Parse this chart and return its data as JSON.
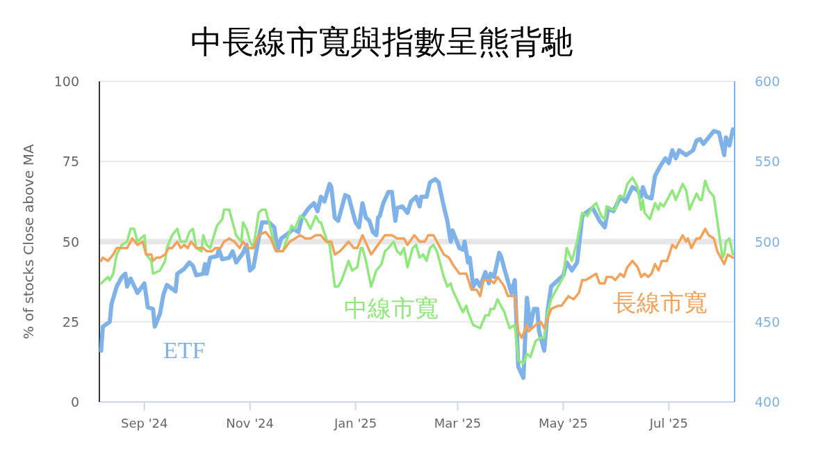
{
  "chart_data": {
    "type": "line",
    "title": "中長線市寬與指數呈熊背馳",
    "ylabel": "% of stocks Close above MA",
    "xlim": [
      "2024-08-06",
      "2025-08-08"
    ],
    "xticks": [
      {
        "value": "2024-09-01",
        "label": "Sep '24"
      },
      {
        "value": "2024-11-01",
        "label": "Nov '24"
      },
      {
        "value": "2025-01-01",
        "label": "Jan '25"
      },
      {
        "value": "2025-03-01",
        "label": "Mar '25"
      },
      {
        "value": "2025-05-01",
        "label": "May '25"
      },
      {
        "value": "2025-07-01",
        "label": "Jul '25"
      }
    ],
    "ylim": [
      0,
      100
    ],
    "yticks": [
      0,
      25,
      50,
      75,
      100
    ],
    "y2lim": [
      400,
      600
    ],
    "y2ticks": [
      400,
      450,
      500,
      550,
      600
    ],
    "grid": "y",
    "ref_lines": [
      {
        "axis": "y",
        "value": 50,
        "color": "#e6e6e6"
      }
    ],
    "series": [
      {
        "name": "ETF",
        "color": "#7fb2e8",
        "axis": "y2",
        "x": [
          "2024-08-07",
          "2024-08-08",
          "2024-08-12",
          "2024-08-13",
          "2024-08-16",
          "2024-08-19",
          "2024-08-21",
          "2024-08-22",
          "2024-08-24",
          "2024-08-28",
          "2024-09-01",
          "2024-09-03",
          "2024-09-06",
          "2024-09-07",
          "2024-09-10",
          "2024-09-12",
          "2024-09-14",
          "2024-09-19",
          "2024-09-20",
          "2024-09-24",
          "2024-09-27",
          "2024-09-29",
          "2024-10-01",
          "2024-10-05",
          "2024-10-06",
          "2024-10-07",
          "2024-10-09",
          "2024-10-13",
          "2024-10-14",
          "2024-10-16",
          "2024-10-20",
          "2024-10-22",
          "2024-10-24",
          "2024-10-28",
          "2024-10-30",
          "2024-11-01",
          "2024-11-03",
          "2024-11-06",
          "2024-11-08",
          "2024-11-12",
          "2024-11-15",
          "2024-11-17",
          "2024-11-19",
          "2024-11-23",
          "2024-11-26",
          "2024-11-29",
          "2024-12-01",
          "2024-12-05",
          "2024-12-08",
          "2024-12-10",
          "2024-12-12",
          "2024-12-14",
          "2024-12-17",
          "2024-12-18",
          "2024-12-20",
          "2024-12-22",
          "2024-12-26",
          "2024-12-28",
          "2025-01-01",
          "2025-01-03",
          "2025-01-05",
          "2025-01-07",
          "2025-01-09",
          "2025-01-11",
          "2025-01-13",
          "2025-01-14",
          "2025-01-15",
          "2025-01-17",
          "2025-01-20",
          "2025-01-22",
          "2025-01-24",
          "2025-01-25",
          "2025-01-28",
          "2025-01-31",
          "2025-02-02",
          "2025-02-05",
          "2025-02-07",
          "2025-02-08",
          "2025-02-11",
          "2025-02-13",
          "2025-02-16",
          "2025-02-18",
          "2025-02-21",
          "2025-02-23",
          "2025-02-25",
          "2025-02-26",
          "2025-03-02",
          "2025-03-04",
          "2025-03-05",
          "2025-03-07",
          "2025-03-08",
          "2025-03-10",
          "2025-03-12",
          "2025-03-14",
          "2025-03-17",
          "2025-03-19",
          "2025-03-20",
          "2025-03-22",
          "2025-03-25",
          "2025-03-26",
          "2025-03-28",
          "2025-04-01",
          "2025-04-03",
          "2025-04-05",
          "2025-04-08",
          "2025-04-10",
          "2025-04-12",
          "2025-04-14",
          "2025-04-16",
          "2025-04-17",
          "2025-04-20",
          "2025-04-22",
          "2025-04-24",
          "2025-04-28",
          "2025-05-01",
          "2025-05-03",
          "2025-05-06",
          "2025-05-09",
          "2025-05-12",
          "2025-05-14",
          "2025-05-18",
          "2025-05-22",
          "2025-05-25",
          "2025-05-27",
          "2025-05-30",
          "2025-06-03",
          "2025-06-06",
          "2025-06-10",
          "2025-06-13",
          "2025-06-15",
          "2025-06-16",
          "2025-06-18",
          "2025-06-21",
          "2025-06-23",
          "2025-06-26",
          "2025-06-29",
          "2025-07-01",
          "2025-07-03",
          "2025-07-05",
          "2025-07-07",
          "2025-07-11",
          "2025-07-15",
          "2025-07-17",
          "2025-07-19",
          "2025-07-21",
          "2025-07-24",
          "2025-07-27",
          "2025-07-30",
          "2025-08-02",
          "2025-08-03",
          "2025-08-05",
          "2025-08-07"
        ],
        "values": [
          432,
          447,
          450,
          461,
          472,
          478,
          480,
          472,
          477,
          468,
          474,
          459,
          458,
          447,
          455,
          467,
          473,
          469,
          480,
          483,
          487,
          485,
          479,
          480,
          486,
          480,
          490,
          491,
          495,
          489,
          490,
          494,
          487,
          493,
          498,
          482,
          484,
          502,
          512,
          512,
          509,
          495,
          502,
          505,
          508,
          506,
          515,
          521,
          524,
          519,
          528,
          525,
          536,
          534,
          515,
          513,
          529,
          528,
          512,
          509,
          524,
          515,
          513,
          506,
          504,
          515,
          516,
          524,
          531,
          531,
          513,
          521,
          522,
          518,
          525,
          528,
          522,
          528,
          528,
          537,
          539,
          537,
          522,
          513,
          500,
          507,
          496,
          495,
          500,
          487,
          490,
          472,
          476,
          472,
          481,
          474,
          480,
          478,
          493,
          491,
          483,
          468,
          476,
          422,
          415,
          465,
          447,
          458,
          458,
          444,
          432,
          457,
          472,
          476,
          479,
          487,
          482,
          487,
          516,
          518,
          521,
          513,
          509,
          521,
          519,
          528,
          525,
          534,
          532,
          528,
          534,
          528,
          527,
          541,
          547,
          552,
          549,
          557,
          552,
          557,
          554,
          557,
          563,
          564,
          561,
          565,
          569,
          568,
          554,
          565,
          560,
          570
        ]
      },
      {
        "name": "中線市寬",
        "color": "#8ee87a",
        "x": [
          "2024-08-07",
          "2024-08-11",
          "2024-08-12",
          "2024-08-14",
          "2024-08-16",
          "2024-08-19",
          "2024-08-22",
          "2024-08-24",
          "2024-08-26",
          "2024-08-28",
          "2024-09-01",
          "2024-09-02",
          "2024-09-05",
          "2024-09-06",
          "2024-09-10",
          "2024-09-13",
          "2024-09-14",
          "2024-09-17",
          "2024-09-20",
          "2024-09-22",
          "2024-09-25",
          "2024-09-27",
          "2024-09-29",
          "2024-10-01",
          "2024-10-04",
          "2024-10-05",
          "2024-10-07",
          "2024-10-09",
          "2024-10-13",
          "2024-10-16",
          "2024-10-17",
          "2024-10-20",
          "2024-10-22",
          "2024-10-24",
          "2024-10-27",
          "2024-10-28",
          "2024-10-30",
          "2024-11-01",
          "2024-11-03",
          "2024-11-06",
          "2024-11-08",
          "2024-11-10",
          "2024-11-12",
          "2024-11-16",
          "2024-11-20",
          "2024-11-25",
          "2024-11-27",
          "2024-11-30",
          "2024-12-03",
          "2024-12-06",
          "2024-12-09",
          "2024-12-11",
          "2024-12-12",
          "2024-12-15",
          "2024-12-17",
          "2024-12-20",
          "2024-12-22",
          "2024-12-24",
          "2024-12-28",
          "2024-12-30",
          "2025-01-02",
          "2025-01-04",
          "2025-01-05",
          "2025-01-07",
          "2025-01-10",
          "2025-01-13",
          "2025-01-16",
          "2025-01-18",
          "2025-01-20",
          "2025-01-23",
          "2025-01-25",
          "2025-01-27",
          "2025-01-29",
          "2025-01-31",
          "2025-02-03",
          "2025-02-05",
          "2025-02-07",
          "2025-02-09",
          "2025-02-11",
          "2025-02-13",
          "2025-02-15",
          "2025-02-17",
          "2025-02-21",
          "2025-02-23",
          "2025-02-25",
          "2025-02-26",
          "2025-03-04",
          "2025-03-06",
          "2025-03-07",
          "2025-03-10",
          "2025-03-14",
          "2025-03-17",
          "2025-03-19",
          "2025-03-20",
          "2025-03-22",
          "2025-03-24",
          "2025-03-28",
          "2025-03-31",
          "2025-04-03",
          "2025-04-05",
          "2025-04-08",
          "2025-04-10",
          "2025-04-12",
          "2025-04-15",
          "2025-04-18",
          "2025-04-20",
          "2025-04-22",
          "2025-04-24",
          "2025-04-28",
          "2025-05-01",
          "2025-05-03",
          "2025-05-06",
          "2025-05-09",
          "2025-05-12",
          "2025-05-15",
          "2025-05-18",
          "2025-05-20",
          "2025-05-23",
          "2025-05-25",
          "2025-05-26",
          "2025-05-29",
          "2025-05-31",
          "2025-06-02",
          "2025-06-05",
          "2025-06-07",
          "2025-06-10",
          "2025-06-13",
          "2025-06-15",
          "2025-06-16",
          "2025-06-17",
          "2025-06-20",
          "2025-06-23",
          "2025-06-25",
          "2025-06-26",
          "2025-06-28",
          "2025-07-03",
          "2025-07-05",
          "2025-07-09",
          "2025-07-11",
          "2025-07-13",
          "2025-07-17",
          "2025-07-19",
          "2025-07-20",
          "2025-07-22",
          "2025-07-24",
          "2025-07-27",
          "2025-08-01",
          "2025-08-02",
          "2025-08-03",
          "2025-08-05",
          "2025-08-07"
        ],
        "values": [
          37,
          39,
          38,
          40,
          46,
          49,
          50,
          54,
          54,
          50,
          52,
          46,
          44,
          40,
          41,
          44,
          48,
          52,
          54,
          50,
          50,
          53,
          54,
          48,
          47,
          52,
          49,
          48,
          55,
          57,
          60,
          60,
          56,
          52,
          50,
          56,
          54,
          50,
          48,
          59,
          60,
          60,
          56,
          47,
          47,
          55,
          54,
          58,
          57,
          54,
          58,
          56,
          56,
          51,
          49,
          36,
          36,
          38,
          44,
          41,
          42,
          48,
          48,
          44,
          36,
          41,
          43,
          47,
          48,
          50,
          47,
          46,
          48,
          42,
          48,
          49,
          45,
          46,
          44,
          48,
          49,
          47,
          39,
          36,
          37,
          35,
          28,
          30,
          28,
          24,
          23,
          27,
          27,
          29,
          29,
          32,
          28,
          23,
          24,
          13,
          12,
          15,
          14,
          19,
          20,
          20,
          28,
          32,
          36,
          39,
          48,
          44,
          50,
          59,
          58,
          61,
          62,
          58,
          57,
          61,
          60,
          60,
          64,
          64,
          68,
          70,
          67,
          60,
          63,
          59,
          57,
          62,
          60,
          62,
          61,
          66,
          63,
          68,
          66,
          60,
          65,
          63,
          63,
          69,
          66,
          64,
          45,
          46,
          50,
          51,
          46
        ]
      },
      {
        "name": "長線市寬",
        "color": "#f4a15a",
        "x": [
          "2024-08-07",
          "2024-08-08",
          "2024-08-11",
          "2024-08-14",
          "2024-08-16",
          "2024-08-19",
          "2024-08-22",
          "2024-08-25",
          "2024-08-28",
          "2024-08-31",
          "2024-09-02",
          "2024-09-05",
          "2024-09-06",
          "2024-09-08",
          "2024-09-10",
          "2024-09-13",
          "2024-09-15",
          "2024-09-17",
          "2024-09-20",
          "2024-09-22",
          "2024-09-24",
          "2024-09-26",
          "2024-09-28",
          "2024-10-01",
          "2024-10-03",
          "2024-10-05",
          "2024-10-07",
          "2024-10-10",
          "2024-10-12",
          "2024-10-15",
          "2024-10-17",
          "2024-10-20",
          "2024-10-23",
          "2024-10-26",
          "2024-10-28",
          "2024-10-31",
          "2024-11-03",
          "2024-11-06",
          "2024-11-10",
          "2024-11-13",
          "2024-11-16",
          "2024-11-20",
          "2024-11-24",
          "2024-11-27",
          "2024-11-30",
          "2024-12-03",
          "2024-12-06",
          "2024-12-09",
          "2024-12-12",
          "2024-12-15",
          "2024-12-18",
          "2024-12-20",
          "2024-12-23",
          "2024-12-28",
          "2024-12-31",
          "2025-01-02",
          "2025-01-05",
          "2025-01-10",
          "2025-01-14",
          "2025-01-18",
          "2025-01-22",
          "2025-01-25",
          "2025-01-29",
          "2025-01-31",
          "2025-02-04",
          "2025-02-07",
          "2025-02-10",
          "2025-02-12",
          "2025-02-15",
          "2025-02-18",
          "2025-02-21",
          "2025-02-24",
          "2025-02-26",
          "2025-03-02",
          "2025-03-06",
          "2025-03-09",
          "2025-03-12",
          "2025-03-14",
          "2025-03-16",
          "2025-03-20",
          "2025-03-22",
          "2025-03-24",
          "2025-03-28",
          "2025-03-30",
          "2025-04-03",
          "2025-04-05",
          "2025-04-07",
          "2025-04-10",
          "2025-04-11",
          "2025-04-15",
          "2025-04-18",
          "2025-04-20",
          "2025-04-24",
          "2025-04-28",
          "2025-04-30",
          "2025-05-04",
          "2025-05-07",
          "2025-05-10",
          "2025-05-12",
          "2025-05-14",
          "2025-05-17",
          "2025-05-20",
          "2025-05-22",
          "2025-05-25",
          "2025-05-26",
          "2025-05-29",
          "2025-05-31",
          "2025-06-03",
          "2025-06-05",
          "2025-06-07",
          "2025-06-10",
          "2025-06-13",
          "2025-06-15",
          "2025-06-17",
          "2025-06-19",
          "2025-06-21",
          "2025-06-23",
          "2025-06-25",
          "2025-06-27",
          "2025-06-30",
          "2025-07-03",
          "2025-07-05",
          "2025-07-09",
          "2025-07-11",
          "2025-07-12",
          "2025-07-14",
          "2025-07-17",
          "2025-07-19",
          "2025-07-22",
          "2025-07-24",
          "2025-07-27",
          "2025-07-29",
          "2025-08-02",
          "2025-08-04",
          "2025-08-07"
        ],
        "values": [
          44,
          45,
          44,
          46,
          48,
          48,
          48,
          51,
          49,
          50,
          46,
          46,
          44,
          45,
          45,
          46,
          48,
          48,
          50,
          48,
          49,
          48,
          50,
          48,
          48,
          48,
          47,
          47,
          48,
          48,
          50,
          51,
          50,
          48,
          50,
          48,
          48,
          52,
          53,
          51,
          47,
          47,
          50,
          51,
          52,
          51,
          51,
          52,
          52,
          50,
          50,
          46,
          47,
          50,
          48,
          48,
          52,
          46,
          49,
          52,
          52,
          51,
          51,
          49,
          52,
          50,
          50,
          52,
          52,
          49,
          46,
          45,
          43,
          40,
          40,
          35,
          35,
          33,
          38,
          38,
          37,
          39,
          36,
          33,
          33,
          22,
          20,
          24,
          22,
          24,
          25,
          23,
          29,
          30,
          30,
          33,
          32,
          34,
          38,
          38,
          39,
          40,
          37,
          37,
          39,
          39,
          38,
          40,
          39,
          42,
          44,
          42,
          39,
          40,
          39,
          40,
          43,
          41,
          44,
          44,
          49,
          48,
          52,
          50,
          51,
          48,
          51,
          51,
          54,
          52,
          51,
          47,
          43,
          46,
          45
        ]
      }
    ]
  }
}
